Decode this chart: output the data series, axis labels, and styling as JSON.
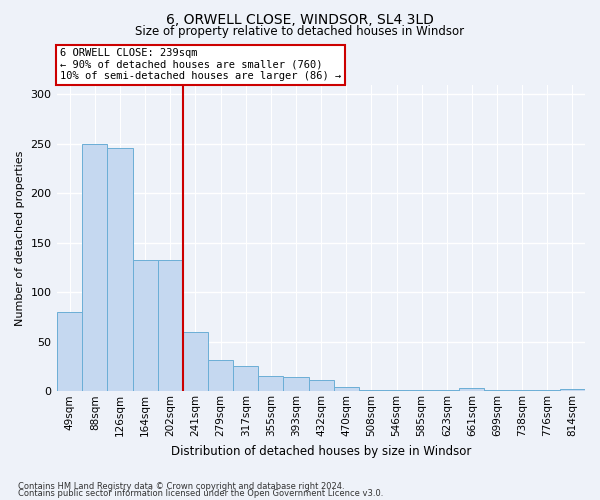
{
  "title1": "6, ORWELL CLOSE, WINDSOR, SL4 3LD",
  "title2": "Size of property relative to detached houses in Windsor",
  "xlabel": "Distribution of detached houses by size in Windsor",
  "ylabel": "Number of detached properties",
  "footnote1": "Contains HM Land Registry data © Crown copyright and database right 2024.",
  "footnote2": "Contains public sector information licensed under the Open Government Licence v3.0.",
  "annotation_line1": "6 ORWELL CLOSE: 239sqm",
  "annotation_line2": "← 90% of detached houses are smaller (760)",
  "annotation_line3": "10% of semi-detached houses are larger (86) →",
  "bins": [
    "49sqm",
    "88sqm",
    "126sqm",
    "164sqm",
    "202sqm",
    "241sqm",
    "279sqm",
    "317sqm",
    "355sqm",
    "393sqm",
    "432sqm",
    "470sqm",
    "508sqm",
    "546sqm",
    "585sqm",
    "623sqm",
    "661sqm",
    "699sqm",
    "738sqm",
    "776sqm",
    "814sqm"
  ],
  "values": [
    80,
    250,
    246,
    133,
    133,
    60,
    32,
    26,
    15,
    14,
    11,
    4,
    1,
    1,
    1,
    1,
    3,
    1,
    1,
    1,
    2
  ],
  "marker_bin_index": 5,
  "bar_color": "#c5d8f0",
  "bar_edge_color": "#6baed6",
  "annotation_box_color": "#ffffff",
  "annotation_box_edge_color": "#cc0000",
  "marker_line_color": "#cc0000",
  "bg_color": "#eef2f9",
  "grid_color": "#ffffff",
  "ylim": [
    0,
    310
  ],
  "yticks": [
    0,
    50,
    100,
    150,
    200,
    250,
    300
  ]
}
